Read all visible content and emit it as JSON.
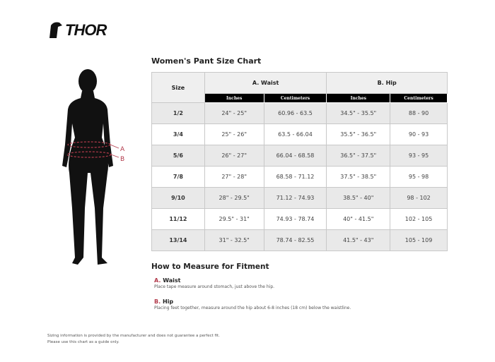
{
  "brand": "THOR",
  "title": "Women's Pant Size Chart",
  "figure_labels": {
    "a": "A",
    "b": "B"
  },
  "table": {
    "size_header": "Size",
    "groups": [
      "A. Waist",
      "B. Hip"
    ],
    "subheaders": [
      "Inches",
      "Centimeters",
      "Inches",
      "Centimeters"
    ],
    "rows": [
      [
        "1/2",
        "24\" - 25\"",
        "60.96 - 63.5",
        "34.5\" - 35.5\"",
        "88 - 90"
      ],
      [
        "3/4",
        "25\" - 26\"",
        "63.5 - 66.04",
        "35.5\" - 36.5\"",
        "90 - 93"
      ],
      [
        "5/6",
        "26\" - 27\"",
        "66.04 - 68.58",
        "36.5\" - 37.5\"",
        "93 - 95"
      ],
      [
        "7/8",
        "27\" - 28\"",
        "68.58 - 71.12",
        "37.5\" - 38.5\"",
        "95 - 98"
      ],
      [
        "9/10",
        "28\" - 29.5\"",
        "71.12 - 74.93",
        "38.5\" - 40\"",
        "98 - 102"
      ],
      [
        "11/12",
        "29.5\" - 31\"",
        "74.93 - 78.74",
        "40\" - 41.5\"",
        "102 - 105"
      ],
      [
        "13/14",
        "31\" - 32.5\"",
        "78.74 - 82.55",
        "41.5\" - 43\"",
        "105 - 109"
      ]
    ]
  },
  "howto": {
    "title": "How to Measure for Fitment",
    "items": [
      {
        "letter": "A.",
        "label": "Waist",
        "desc": "Place tape measure around stomach, just above the hip."
      },
      {
        "letter": "B.",
        "label": "Hip",
        "desc": "Placing feet together, measure around the hip about 6-8 inches (18 cm) below the waistline."
      }
    ]
  },
  "footer": [
    "Sizing information is provided by the manufacturer and does not guarantee a perfect fit.",
    "Please use this chart as a guide only."
  ],
  "colors": {
    "accent": "#b23a4b",
    "header_black": "#000000",
    "row_gray": "#e9e9e9"
  }
}
